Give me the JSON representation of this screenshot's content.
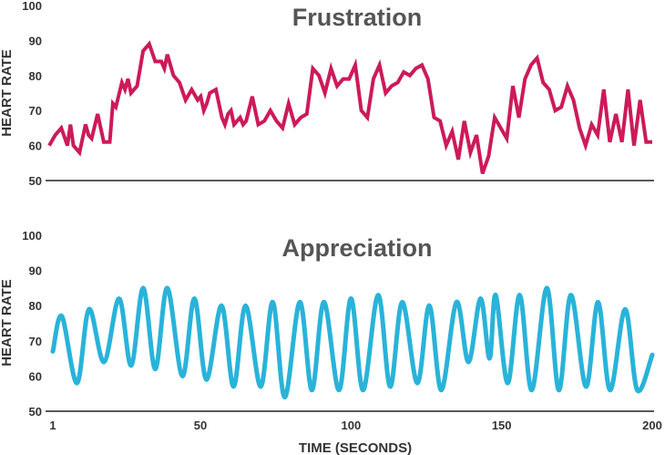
{
  "chart_data": [
    {
      "type": "line",
      "title": "Frustration",
      "xlabel": "",
      "ylabel": "HEART RATE",
      "ylim": [
        50,
        100
      ],
      "xlim": [
        1,
        200
      ],
      "yticks": [
        "50",
        "60",
        "70",
        "80",
        "90",
        "100"
      ],
      "xticks": [],
      "grid": false,
      "color": "#cc1a5a",
      "series": [
        {
          "x": [
            1,
            3,
            5,
            7,
            8,
            9,
            11,
            13,
            14,
            15,
            17,
            19,
            21,
            22,
            23,
            25,
            26,
            27,
            28,
            30,
            32,
            34,
            36,
            38,
            39,
            40,
            42,
            44,
            46,
            48,
            50,
            51,
            52,
            53,
            54,
            56,
            58,
            59,
            60,
            61,
            62,
            64,
            65,
            66,
            68,
            70,
            72,
            74,
            76,
            78,
            80,
            82,
            84,
            86,
            88,
            90,
            92,
            94,
            96,
            98,
            100,
            102,
            104,
            106,
            108,
            110,
            112,
            114,
            116,
            118,
            120,
            122,
            124,
            126,
            128,
            130,
            132,
            134,
            136,
            138,
            140,
            142,
            144,
            146,
            148,
            150,
            152,
            154,
            156,
            158,
            160,
            162,
            164,
            166,
            168,
            170,
            172,
            174,
            176,
            178,
            180,
            182,
            184,
            186,
            188,
            190,
            192,
            194,
            196,
            198,
            200
          ],
          "y": [
            60,
            63,
            65,
            60,
            66,
            60,
            58,
            66,
            63,
            62,
            69,
            61,
            61,
            72,
            71,
            78,
            76,
            79,
            75,
            77,
            87,
            89,
            84,
            84,
            82,
            86,
            80,
            78,
            73,
            76,
            73,
            74,
            70,
            72,
            75,
            76,
            68,
            66,
            69,
            70,
            66,
            68,
            66,
            67,
            74,
            66,
            67,
            70,
            67,
            65,
            72,
            66,
            68,
            69,
            82,
            80,
            75,
            82,
            77,
            79,
            79,
            83,
            70,
            68,
            79,
            83,
            75,
            77,
            78,
            81,
            80,
            82,
            83,
            79,
            68,
            67,
            60,
            64,
            56,
            67,
            58,
            63,
            52,
            57,
            68,
            65,
            62,
            77,
            68,
            79,
            83,
            85,
            78,
            76,
            70,
            71,
            77,
            73,
            65,
            60,
            66,
            63,
            76,
            61,
            69,
            61,
            76,
            60,
            73,
            61,
            61
          ]
        }
      ]
    },
    {
      "type": "line",
      "title": "Appreciation",
      "xlabel": "TIME (SECONDS)",
      "ylabel": "HEART RATE",
      "ylim": [
        50,
        100
      ],
      "xlim": [
        1,
        200
      ],
      "yticks": [
        "50",
        "60",
        "70",
        "80",
        "90",
        "100"
      ],
      "xticks": [
        {
          "value": 1,
          "label": "1"
        },
        {
          "value": 50,
          "label": "50"
        },
        {
          "value": 100,
          "label": "100"
        },
        {
          "value": 150,
          "label": "150"
        },
        {
          "value": 200,
          "label": "200"
        }
      ],
      "grid": false,
      "color": "#29b3d9",
      "series": [
        {
          "x": [
            1,
            4,
            9,
            13,
            18,
            23,
            27,
            31,
            35,
            39,
            44,
            48,
            52,
            57,
            61,
            65,
            70,
            74,
            78,
            83,
            87,
            91,
            96,
            100,
            104,
            109,
            113,
            117,
            122,
            126,
            130,
            135,
            139,
            143,
            146,
            148,
            152,
            156,
            160,
            165,
            169,
            173,
            178,
            182,
            186,
            191,
            195,
            200
          ],
          "y": [
            67,
            77,
            58,
            79,
            64,
            82,
            63,
            85,
            62,
            85,
            60,
            82,
            59,
            80,
            57,
            80,
            57,
            81,
            54,
            81,
            56,
            81,
            56,
            82,
            56,
            83,
            57,
            81,
            58,
            80,
            56,
            81,
            64,
            82,
            65,
            83,
            58,
            83,
            56,
            85,
            56,
            83,
            57,
            81,
            56,
            79,
            56,
            66
          ]
        }
      ]
    }
  ]
}
